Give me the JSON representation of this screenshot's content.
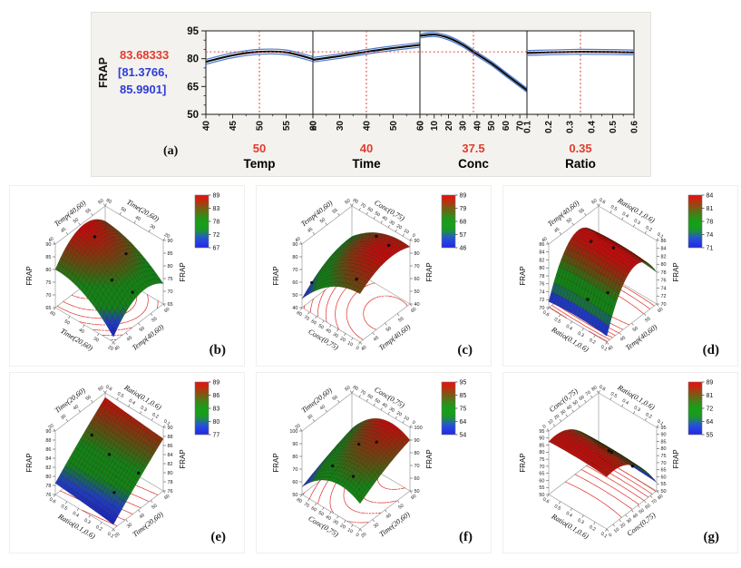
{
  "page": {
    "background": "#ffffff"
  },
  "colors": {
    "panel_a_bg": "#f3f2ee",
    "panel_a_border": "#e2e1db",
    "red_accent": "#e23b2e",
    "blue_ci": "#2f3bd9",
    "band_blue": "#4a7bd0",
    "curve_black": "#0c0c0c",
    "contour_red": "#df312b",
    "wire_gray": "#9a9a9a",
    "colormap_stops": [
      [
        0,
        [
          32,
          40,
          222
        ]
      ],
      [
        0.17,
        [
          40,
          75,
          235
        ]
      ],
      [
        0.34,
        [
          24,
          158,
          26
        ]
      ],
      [
        0.54,
        [
          24,
          158,
          26
        ]
      ],
      [
        1,
        [
          238,
          12,
          12
        ]
      ]
    ]
  },
  "chart_data": [
    {
      "id": "a",
      "type": "profiler",
      "label": "(a)",
      "ylabel": "FRAP",
      "prediction": {
        "value": "83.68333",
        "ci_line1": "[81.3766,",
        "ci_line2": "85.9901]"
      },
      "yaxis": {
        "min": 50,
        "max": 95,
        "ticks": [
          50,
          65,
          80,
          95
        ],
        "minor_step": 5
      },
      "crosshair_y": 83.68333,
      "factors": [
        {
          "name": "Temp",
          "current": "50",
          "min": 40,
          "max": 60,
          "ticks": [
            40,
            45,
            50,
            55,
            60
          ],
          "curve": [
            [
              40,
              78.3
            ],
            [
              45,
              81.8
            ],
            [
              50,
              83.7
            ],
            [
              55,
              83.4
            ],
            [
              60,
              79.8
            ]
          ],
          "band": 1.3
        },
        {
          "name": "Time",
          "current": "40",
          "min": 20,
          "max": 60,
          "ticks": [
            20,
            30,
            40,
            50,
            60
          ],
          "curve": [
            [
              20,
              79.4
            ],
            [
              30,
              81.4
            ],
            [
              40,
              83.7
            ],
            [
              50,
              85.7
            ],
            [
              60,
              87.4
            ]
          ],
          "band": 1.2
        },
        {
          "name": "Conc",
          "current": "37.5",
          "min": 0,
          "max": 75,
          "ticks": [
            0,
            10,
            20,
            30,
            40,
            50,
            60,
            70
          ],
          "curve": [
            [
              0,
              92.3
            ],
            [
              10,
              93.0
            ],
            [
              20,
              91.2
            ],
            [
              30,
              87.5
            ],
            [
              37.5,
              83.7
            ],
            [
              50,
              77.5
            ],
            [
              62,
              70.5
            ],
            [
              75,
              63.0
            ]
          ],
          "band": 1.1
        },
        {
          "name": "Ratio",
          "current": "0.35",
          "min": 0.1,
          "max": 0.6,
          "ticks": [
            0.1,
            0.2,
            0.3,
            0.4,
            0.5,
            0.6
          ],
          "curve": [
            [
              0.1,
              83.1
            ],
            [
              0.35,
              83.7
            ],
            [
              0.6,
              83.4
            ]
          ],
          "band": 1.3
        }
      ]
    },
    {
      "id": "b",
      "type": "surface3d",
      "label": "(b)",
      "zlabel": "FRAP",
      "x1": {
        "name": "Temp(40,60)",
        "min": 40,
        "max": 60,
        "ticks": [
          40,
          45,
          50,
          55,
          60
        ]
      },
      "x2": {
        "name": "Time(20,60)",
        "min": 20,
        "max": 60,
        "ticks": [
          20,
          30,
          40,
          50,
          60
        ]
      },
      "zaxis": {
        "min": 65,
        "max": 90,
        "ticks": [
          65,
          70,
          75,
          80,
          85,
          90
        ]
      },
      "colorbar": {
        "min": 67,
        "max": 89,
        "labels_top_to_bottom": [
          89,
          83,
          78,
          72,
          67
        ]
      },
      "grid_note": "z values; rows: x2 at min,mid,max; cols: x1 at min,mid,max",
      "grid_z": [
        [
          67,
          76,
          73
        ],
        [
          77,
          85,
          81
        ],
        [
          80,
          89,
          84
        ]
      ],
      "points": [
        [
          50,
          50,
          88
        ],
        [
          47,
          33,
          79
        ],
        [
          55,
          37,
          82
        ],
        [
          50,
          24,
          75
        ]
      ]
    },
    {
      "id": "c",
      "type": "surface3d",
      "label": "(c)",
      "zlabel": "FRAP",
      "x1": {
        "name": "Temp(40,60)",
        "min": 40,
        "max": 60,
        "ticks": [
          40,
          45,
          50,
          55,
          60
        ]
      },
      "x2": {
        "name": "Conc(0,75)",
        "min": 0,
        "max": 80,
        "ticks": [
          0,
          10,
          20,
          30,
          40,
          50,
          60,
          70,
          80
        ]
      },
      "zaxis": {
        "min": 40,
        "max": 90,
        "ticks": [
          40,
          50,
          60,
          70,
          80,
          90
        ]
      },
      "colorbar": {
        "min": 46,
        "max": 89,
        "labels_top_to_bottom": [
          89,
          79,
          68,
          57,
          46
        ]
      },
      "grid_z": [
        [
          78,
          88,
          85
        ],
        [
          70,
          83,
          82
        ],
        [
          47,
          62,
          66
        ]
      ],
      "points": [
        [
          41,
          70,
          60
        ],
        [
          55,
          12,
          88
        ],
        [
          57,
          36,
          84
        ],
        [
          45,
          22,
          73
        ]
      ]
    },
    {
      "id": "d",
      "type": "surface3d",
      "label": "(d)",
      "zlabel": "FRAP",
      "x1": {
        "name": "Temp(40,60)",
        "min": 40,
        "max": 60,
        "ticks": [
          40,
          45,
          50,
          55,
          60
        ]
      },
      "x2": {
        "name": "Ratio(0.1,0.6)",
        "min": 0.1,
        "max": 0.6,
        "ticks": [
          0.1,
          0.2,
          0.3,
          0.4,
          0.5,
          0.6
        ]
      },
      "zaxis": {
        "min": 70,
        "max": 86,
        "ticks": [
          70,
          72,
          74,
          76,
          78,
          80,
          82,
          84,
          86
        ]
      },
      "colorbar": {
        "min": 71,
        "max": 84,
        "labels_top_to_bottom": [
          84,
          81,
          78,
          74,
          71
        ]
      },
      "grid_z": [
        [
          71.5,
          83.5,
          78
        ],
        [
          72,
          84,
          78.5
        ],
        [
          71.5,
          83.5,
          78
        ]
      ],
      "points": [
        [
          50,
          0.45,
          84
        ],
        [
          52,
          0.3,
          84
        ],
        [
          46,
          0.22,
          77
        ],
        [
          44,
          0.35,
          74
        ]
      ]
    },
    {
      "id": "e",
      "type": "surface3d",
      "label": "(e)",
      "zlabel": "FRAP",
      "x1": {
        "name": "Time(20,60)",
        "min": 20,
        "max": 60,
        "ticks": [
          20,
          30,
          40,
          50,
          60
        ]
      },
      "x2": {
        "name": "Ratio(0.1,0.6)",
        "min": 0.1,
        "max": 0.6,
        "ticks": [
          0.1,
          0.2,
          0.3,
          0.4,
          0.5,
          0.6
        ]
      },
      "zaxis": {
        "min": 76,
        "max": 90,
        "ticks": [
          76,
          78,
          80,
          82,
          84,
          86,
          88,
          90
        ]
      },
      "colorbar": {
        "min": 77,
        "max": 89,
        "labels_top_to_bottom": [
          89,
          86,
          83,
          80,
          77
        ]
      },
      "grid_z": [
        [
          77,
          82.5,
          87.5
        ],
        [
          77.8,
          83.3,
          88.2
        ],
        [
          78.5,
          84,
          89
        ]
      ],
      "points": [
        [
          40,
          0.5,
          86
        ],
        [
          40,
          0.35,
          84
        ],
        [
          30,
          0.2,
          80
        ],
        [
          42,
          0.12,
          83
        ]
      ]
    },
    {
      "id": "f",
      "type": "surface3d",
      "label": "(f)",
      "zlabel": "FRAP",
      "x1": {
        "name": "Time(20,60)",
        "min": 20,
        "max": 60,
        "ticks": [
          20,
          30,
          40,
          50,
          60
        ]
      },
      "x2": {
        "name": "Conc(0,75)",
        "min": 0,
        "max": 80,
        "ticks": [
          0,
          10,
          20,
          30,
          40,
          50,
          60,
          70,
          80
        ]
      },
      "zaxis": {
        "min": 50,
        "max": 100,
        "ticks": [
          50,
          60,
          70,
          80,
          90,
          100
        ]
      },
      "colorbar": {
        "min": 54,
        "max": 95,
        "labels_top_to_bottom": [
          95,
          85,
          75,
          64,
          54
        ]
      },
      "grid_z": [
        [
          70,
          82,
          90
        ],
        [
          74,
          85,
          93
        ],
        [
          56,
          65,
          72
        ]
      ],
      "points": [
        [
          25,
          18,
          80
        ],
        [
          40,
          36,
          88
        ],
        [
          46,
          22,
          90
        ],
        [
          30,
          55,
          72
        ]
      ]
    },
    {
      "id": "g",
      "type": "surface3d",
      "label": "(g)",
      "zlabel": "FRAP",
      "x1": {
        "name": "Conc(0,75)",
        "min": 0,
        "max": 80,
        "ticks": [
          0,
          10,
          20,
          30,
          40,
          50,
          60,
          70,
          80
        ]
      },
      "x2": {
        "name": "Ratio(0.1,0.6)",
        "min": 0.1,
        "max": 0.6,
        "ticks": [
          0.1,
          0.2,
          0.3,
          0.4,
          0.5,
          0.6
        ]
      },
      "zaxis": {
        "min": 50,
        "max": 95,
        "ticks": [
          50,
          55,
          60,
          65,
          70,
          75,
          80,
          85,
          90,
          95
        ]
      },
      "colorbar": {
        "min": 55,
        "max": 89,
        "labels_top_to_bottom": [
          89,
          81,
          72,
          64,
          55
        ]
      },
      "grid_z": [
        [
          87,
          82,
          56
        ],
        [
          88,
          83,
          57
        ],
        [
          87.5,
          82.5,
          56.5
        ]
      ],
      "points": [
        [
          45,
          0.3,
          78
        ],
        [
          50,
          0.35,
          75
        ],
        [
          60,
          0.2,
          68
        ]
      ]
    }
  ]
}
